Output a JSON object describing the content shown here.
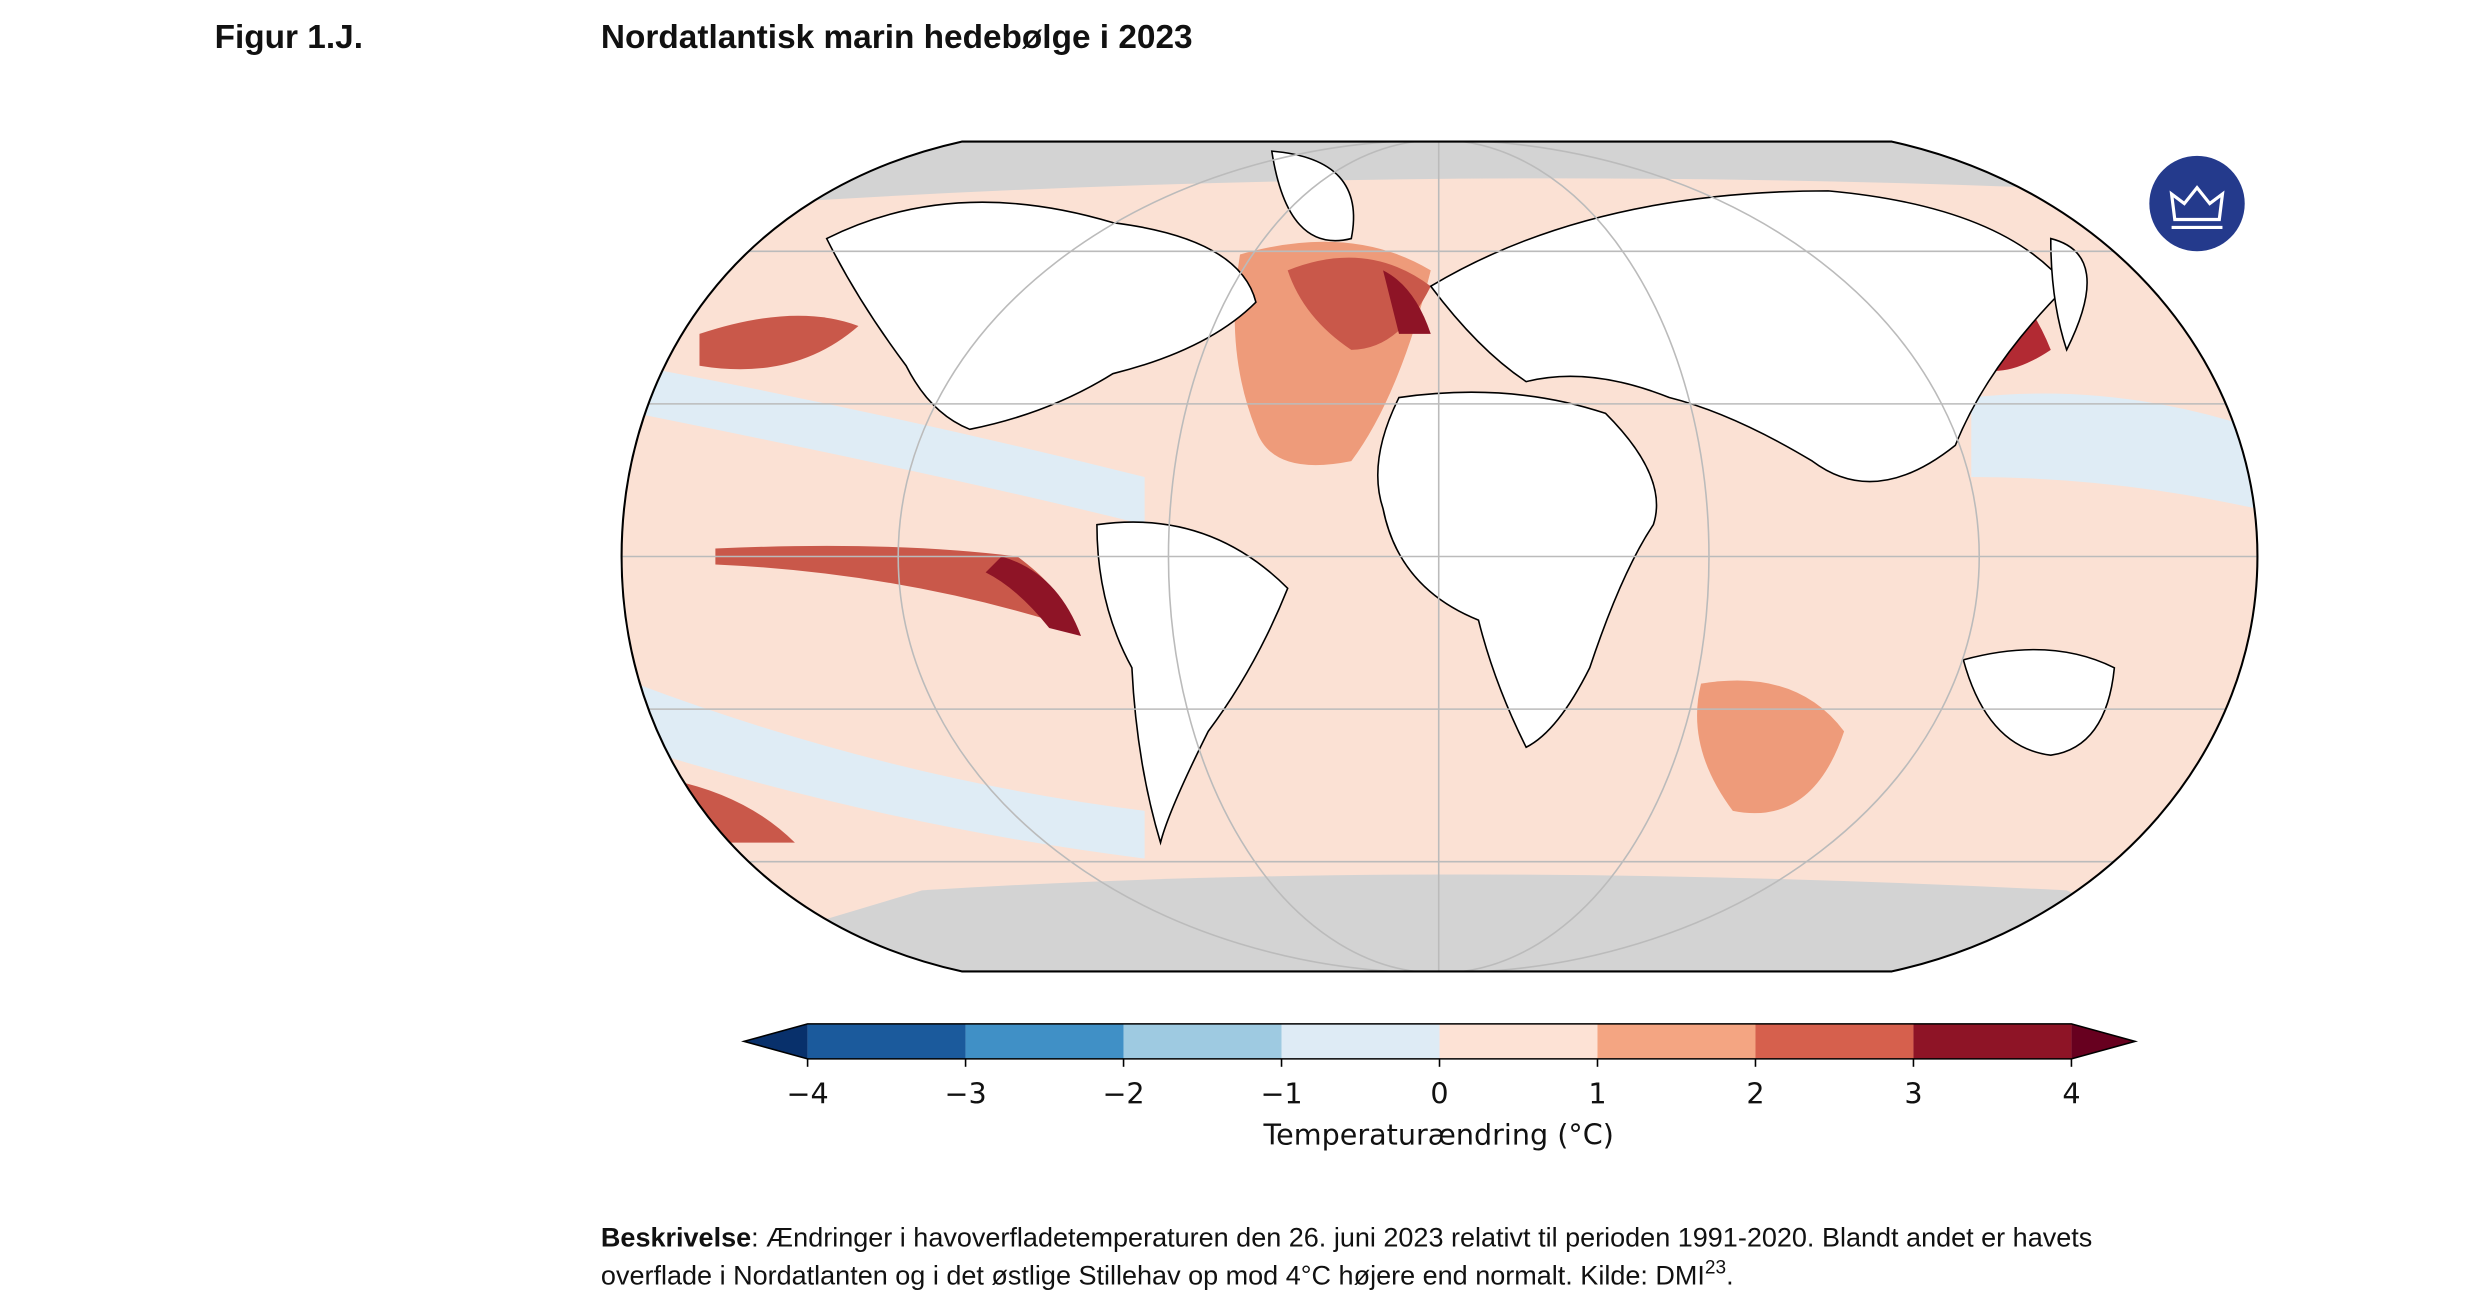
{
  "header": {
    "figure_label": "Figur 1.J.",
    "title": "Nordatlantisk marin hedebølge i 2023"
  },
  "colorbar": {
    "label": "Temperaturændring (°C)",
    "ticks": [
      {
        "value": -4,
        "label": "−4"
      },
      {
        "value": -3,
        "label": "−3"
      },
      {
        "value": -2,
        "label": "−2"
      },
      {
        "value": -1,
        "label": "−1"
      },
      0,
      1,
      2,
      3,
      4
    ],
    "colors": [
      "#08306b",
      "#1b5a9c",
      "#4090c6",
      "#9ecae1",
      "#deebf5",
      "#fde2d5",
      "#f4a582",
      "#d6604d",
      "#8e1426",
      "#67001f"
    ]
  },
  "description": {
    "bold": "Beskrivelse",
    "line1": ": Ændringer i havoverfladetemperaturen den 26. juni 2023 relativt til perioden 1991-2020. Blandt andet er havets",
    "line2": "overflade i Nordatlanten og i det østlige Stillehav op mod 4°C højere end normalt. Kilde: DMI",
    "superscript": "23",
    "end": "."
  }
}
